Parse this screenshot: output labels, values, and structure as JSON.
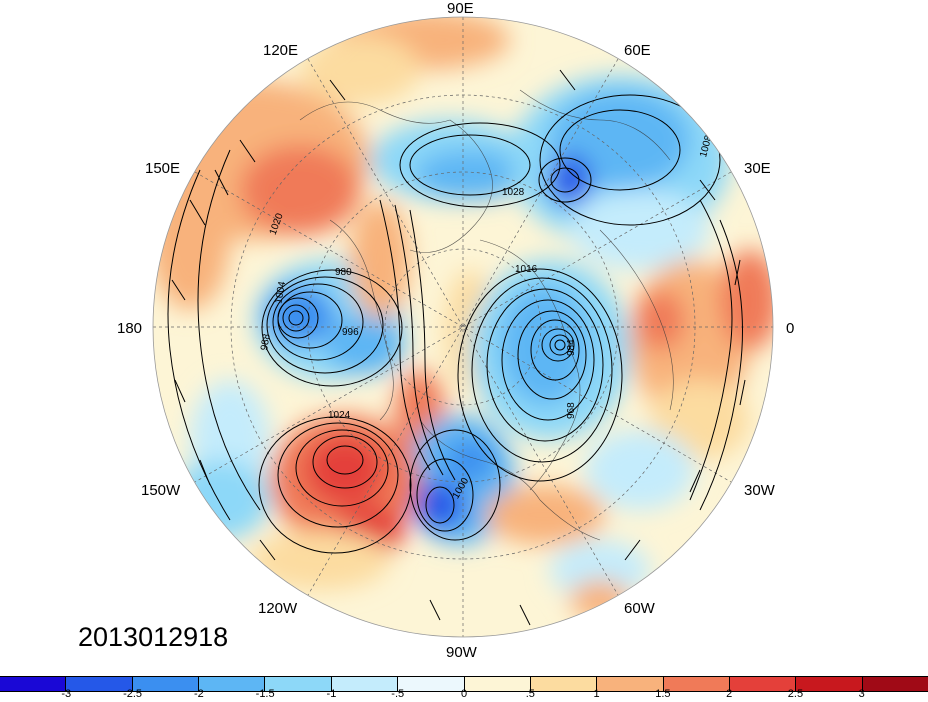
{
  "map": {
    "longitude_labels": [
      "90E",
      "60E",
      "30E",
      "0",
      "30W",
      "60W",
      "90W",
      "120W",
      "150W",
      "180",
      "150E",
      "120E"
    ],
    "contour_labels": [
      "1012",
      "1008",
      "1016",
      "1020",
      "1024",
      "1028",
      "1004",
      "1000",
      "996",
      "988",
      "984",
      "980",
      "968"
    ],
    "timestamp": "2013012918"
  },
  "colorbar": {
    "colors": [
      "#1a08d6",
      "#2558e8",
      "#3b8ff0",
      "#5db6f4",
      "#8dd8f8",
      "#c4ecfc",
      "#ecf8fd",
      "#fdf5d6",
      "#fcdca0",
      "#f8b27c",
      "#f07a58",
      "#e4403a",
      "#c8181e",
      "#a00a16"
    ],
    "tick_labels": [
      "-3",
      "-2.5",
      "-2",
      "-1.5",
      "-1",
      "-.5",
      "0",
      ".5",
      "1",
      "1.5",
      "2",
      "2.5",
      "3"
    ]
  }
}
